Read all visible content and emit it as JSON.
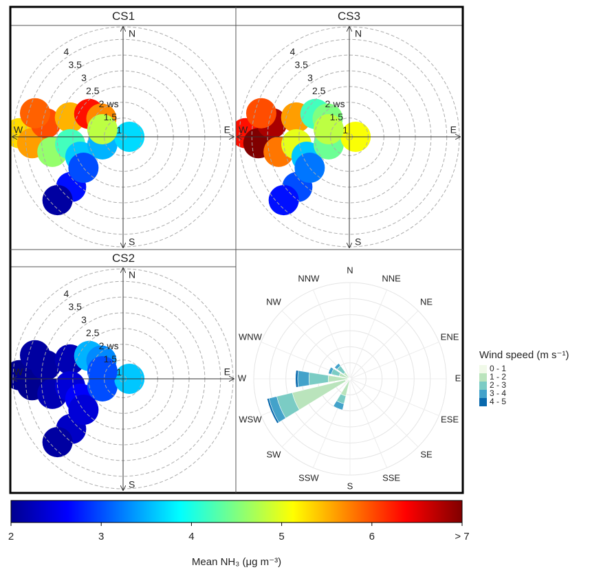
{
  "chart_data": [
    {
      "type": "polar",
      "title": "CS1",
      "compass": [
        "N",
        "E",
        "S",
        "W"
      ],
      "r_label": "ws",
      "rlim": [
        0.9,
        4.4
      ],
      "rticks": [
        1,
        1.5,
        2,
        2.5,
        3,
        3.5,
        4
      ],
      "direction": [
        272,
        266,
        280,
        285,
        290,
        304,
        310,
        258,
        262,
        245,
        250,
        226,
        226,
        232,
        90,
        290
      ],
      "ws": [
        4.2,
        3.8,
        3.4,
        3.8,
        2.7,
        2.2,
        1.8,
        3.2,
        2.6,
        2.4,
        1.6,
        3.2,
        3.8,
        2.5,
        1.1,
        1.6
      ],
      "values": [
        5.3,
        5.6,
        6.0,
        5.9,
        5.5,
        6.3,
        5.7,
        4.6,
        4.2,
        3.6,
        3.5,
        2.7,
        2.1,
        3.0,
        3.7,
        4.8
      ]
    },
    {
      "type": "polar",
      "title": "CS3",
      "compass": [
        "N",
        "E",
        "S",
        "W"
      ],
      "r_label": "ws",
      "rlim": [
        0.9,
        4.4
      ],
      "rticks": [
        1,
        1.5,
        2,
        2.5,
        3,
        3.5,
        4
      ],
      "direction": [
        272,
        266,
        280,
        285,
        290,
        304,
        310,
        258,
        262,
        245,
        250,
        226,
        226,
        232,
        90,
        290
      ],
      "ws": [
        4.2,
        3.8,
        3.4,
        3.8,
        2.7,
        2.2,
        1.8,
        3.2,
        2.6,
        2.4,
        1.6,
        3.2,
        3.8,
        2.5,
        1.1,
        1.6
      ],
      "values": [
        6.3,
        7.0,
        6.8,
        6.0,
        5.6,
        4.2,
        4.5,
        5.8,
        5.0,
        3.6,
        4.4,
        3.0,
        2.7,
        3.2,
        5.1,
        4.8
      ]
    },
    {
      "type": "polar",
      "title": "CS2",
      "compass": [
        "N",
        "E",
        "S",
        "W"
      ],
      "r_label": "ws",
      "rlim": [
        0.9,
        4.4
      ],
      "rticks": [
        1,
        1.5,
        2,
        2.5,
        3,
        3.5,
        4
      ],
      "direction": [
        272,
        266,
        280,
        285,
        290,
        304,
        310,
        258,
        262,
        245,
        250,
        226,
        226,
        232,
        90,
        290
      ],
      "ws": [
        4.2,
        3.8,
        3.4,
        3.8,
        2.7,
        2.2,
        1.8,
        3.2,
        2.6,
        2.4,
        1.6,
        3.2,
        3.8,
        2.5,
        1.1,
        1.6
      ],
      "values": [
        2.0,
        2.0,
        2.1,
        2.1,
        2.2,
        3.5,
        3.3,
        2.2,
        2.4,
        2.6,
        3.0,
        2.3,
        2.1,
        2.4,
        3.6,
        3.0
      ]
    },
    {
      "type": "windrose",
      "legend_title": "Wind speed (m s⁻¹)",
      "categories": [
        "N",
        "NNE",
        "NE",
        "ENE",
        "E",
        "ESE",
        "SE",
        "SSE",
        "S",
        "SSW",
        "SW",
        "WSW",
        "W",
        "WNW",
        "NW",
        "NNW"
      ],
      "rlim": [
        0,
        30
      ],
      "rticks": [
        5,
        10,
        15,
        20,
        25,
        30
      ],
      "series": [
        {
          "name": "0 - 1",
          "color": "#f0f9e8",
          "values": [
            0.4,
            0.3,
            0.3,
            0.3,
            0.3,
            0.3,
            0.3,
            0.3,
            0.4,
            0.5,
            0.5,
            1.5,
            0.8,
            0.5,
            0.5,
            0.4
          ]
        },
        {
          "name": "1 - 2",
          "color": "#bae4bc",
          "values": [
            0,
            0,
            0,
            0,
            0,
            0,
            0,
            0,
            0,
            5,
            0,
            17,
            6,
            3,
            2,
            0
          ]
        },
        {
          "name": "2 - 3",
          "color": "#7bccc4",
          "values": [
            0,
            0,
            0,
            0,
            0,
            0,
            0,
            0,
            0,
            2.5,
            0,
            5,
            6,
            2.5,
            2.5,
            0
          ]
        },
        {
          "name": "3 - 4",
          "color": "#43a2ca",
          "values": [
            0,
            0,
            0,
            0,
            0,
            0,
            0,
            0,
            0,
            2,
            0,
            2.5,
            3.5,
            1,
            1,
            0
          ]
        },
        {
          "name": "4 - 5",
          "color": "#0868ac",
          "values": [
            0,
            0,
            0,
            0,
            0,
            0,
            0,
            0,
            0,
            0,
            0,
            0.6,
            0.7,
            0,
            0,
            0
          ]
        }
      ]
    },
    {
      "type": "colorbar",
      "title": "Mean NH₃ (μg m⁻³)",
      "xlim": [
        2,
        7
      ],
      "xticks": [
        2,
        3,
        4,
        5,
        6,
        {
          "value": 7,
          "label": "> 7"
        }
      ],
      "colormap": [
        "#00008f",
        "#0000ff",
        "#0080ff",
        "#00ffff",
        "#80ff80",
        "#ffff00",
        "#ff8000",
        "#ff0000",
        "#800000"
      ]
    }
  ]
}
